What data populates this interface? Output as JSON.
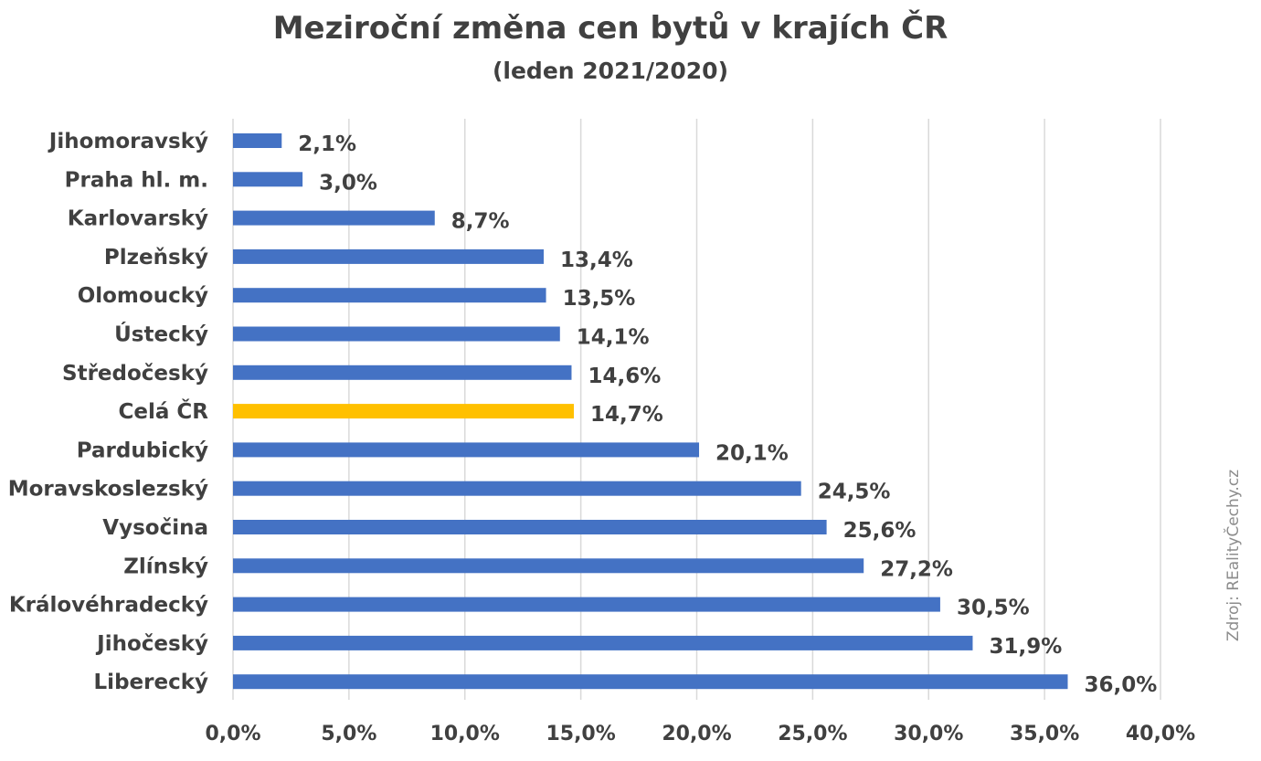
{
  "chart_data": {
    "type": "bar",
    "orientation": "horizontal",
    "title": "Meziroční změna cen bytů v krajích ČR",
    "subtitle": "(leden 2021/2020)",
    "xlim": [
      0,
      40
    ],
    "xticks": [
      0,
      5,
      10,
      15,
      20,
      25,
      30,
      35,
      40
    ],
    "xtick_labels": [
      "0,0%",
      "5,0%",
      "10,0%",
      "15,0%",
      "20,0%",
      "25,0%",
      "30,0%",
      "35,0%",
      "40,0%"
    ],
    "grid": "vertical",
    "categories": [
      "Jihomoravský",
      "Praha hl. m.",
      "Karlovarský",
      "Plzeňský",
      "Olomoucký",
      "Ústecký",
      "Středočeský",
      "Celá ČR",
      "Pardubický",
      "Moravskoslezský",
      "Vysočina",
      "Zlínský",
      "Královéhradecký",
      "Jihočeský",
      "Liberecký"
    ],
    "values": [
      2.1,
      3.0,
      8.7,
      13.4,
      13.5,
      14.1,
      14.6,
      14.7,
      20.1,
      24.5,
      25.6,
      27.2,
      30.5,
      31.9,
      36.0
    ],
    "value_labels": [
      "2,1%",
      "3,0%",
      "8,7%",
      "13,4%",
      "13,5%",
      "14,1%",
      "14,6%",
      "14,7%",
      "20,1%",
      "24,5%",
      "25,6%",
      "27,2%",
      "30,5%",
      "31,9%",
      "36,0%"
    ],
    "highlight_category": "Celá ČR",
    "colors": {
      "bar": "#4472c4",
      "highlight": "#ffc000",
      "grid": "#d9d9d9",
      "text": "#404040",
      "source": "#8c8c8c"
    },
    "source_note": "Zdroj: REalityČechy.cz"
  }
}
